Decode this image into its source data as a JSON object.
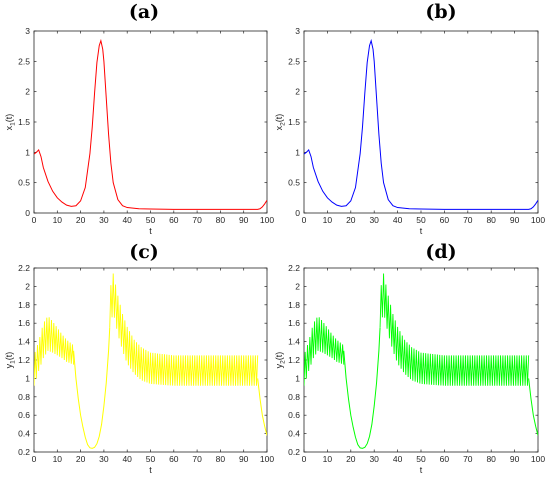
{
  "chart_data": [
    {
      "type": "line",
      "title": "(a)",
      "xlabel": "t",
      "ylabel": "x",
      "ylabel_sub": "1",
      "ylabel_tail": "(t)",
      "xlim": [
        0,
        100
      ],
      "ylim": [
        0,
        3
      ],
      "xticks": [
        0,
        10,
        20,
        30,
        40,
        50,
        60,
        70,
        80,
        90,
        100
      ],
      "yticks": [
        0,
        0.5,
        1,
        1.5,
        2,
        2.5,
        3
      ],
      "color": "#ff0000",
      "series": [
        {
          "x": [
            0,
            1,
            2,
            3,
            4,
            6,
            8,
            10,
            12,
            14,
            16,
            18,
            20,
            22,
            24,
            25,
            26,
            27,
            28,
            28.7,
            29.5,
            30,
            31,
            32,
            33,
            34,
            36,
            38,
            40,
            45,
            50,
            60,
            70,
            80,
            90,
            96,
            97,
            98,
            99,
            100
          ],
          "y": [
            0.97,
            1.0,
            1.04,
            0.93,
            0.75,
            0.52,
            0.36,
            0.25,
            0.18,
            0.13,
            0.11,
            0.12,
            0.2,
            0.42,
            0.98,
            1.42,
            1.98,
            2.48,
            2.76,
            2.84,
            2.7,
            2.5,
            1.9,
            1.3,
            0.82,
            0.5,
            0.22,
            0.12,
            0.09,
            0.07,
            0.065,
            0.06,
            0.06,
            0.06,
            0.06,
            0.06,
            0.07,
            0.1,
            0.15,
            0.21
          ]
        }
      ]
    },
    {
      "type": "line",
      "title": "(b)",
      "xlabel": "t",
      "ylabel": "x",
      "ylabel_sub": "2",
      "ylabel_tail": "(t)",
      "xlim": [
        0,
        100
      ],
      "ylim": [
        0,
        3
      ],
      "xticks": [
        0,
        10,
        20,
        30,
        40,
        50,
        60,
        70,
        80,
        90,
        100
      ],
      "yticks": [
        0,
        0.5,
        1,
        1.5,
        2,
        2.5,
        3
      ],
      "color": "#0000ff",
      "series": [
        {
          "x": [
            0,
            1,
            2,
            3,
            4,
            6,
            8,
            10,
            12,
            14,
            16,
            18,
            20,
            22,
            24,
            25,
            26,
            27,
            28,
            28.7,
            29.5,
            30,
            31,
            32,
            33,
            34,
            36,
            38,
            40,
            45,
            50,
            60,
            70,
            80,
            90,
            96,
            97,
            98,
            99,
            100
          ],
          "y": [
            0.97,
            1.0,
            1.04,
            0.93,
            0.75,
            0.52,
            0.36,
            0.25,
            0.18,
            0.13,
            0.11,
            0.12,
            0.2,
            0.42,
            0.98,
            1.42,
            1.98,
            2.48,
            2.76,
            2.84,
            2.7,
            2.5,
            1.9,
            1.3,
            0.82,
            0.5,
            0.22,
            0.12,
            0.09,
            0.07,
            0.065,
            0.06,
            0.06,
            0.06,
            0.06,
            0.06,
            0.07,
            0.1,
            0.15,
            0.21
          ]
        }
      ]
    },
    {
      "type": "line",
      "title": "(c)",
      "xlabel": "t",
      "ylabel": "y",
      "ylabel_sub": "1",
      "ylabel_tail": "(t)",
      "xlim": [
        0,
        100
      ],
      "ylim": [
        0.2,
        2.2
      ],
      "xticks": [
        0,
        10,
        20,
        30,
        40,
        50,
        60,
        70,
        80,
        90,
        100
      ],
      "yticks": [
        0.2,
        0.4,
        0.6,
        0.8,
        1,
        1.2,
        1.4,
        1.6,
        1.8,
        2,
        2.2
      ],
      "color": "#ffff00",
      "series": [
        {
          "segments": [
            {
              "x_start": 0,
              "x_end": 17,
              "step": 0.5,
              "upper": [
                [
                  0,
                  1.25
                ],
                [
                  2,
                  1.4
                ],
                [
                  4,
                  1.6
                ],
                [
                  6,
                  1.68
                ],
                [
                  8,
                  1.62
                ],
                [
                  10,
                  1.55
                ],
                [
                  12,
                  1.48
                ],
                [
                  14,
                  1.42
                ],
                [
                  16,
                  1.38
                ],
                [
                  17,
                  1.36
                ]
              ],
              "lower": [
                [
                  0,
                  0.92
                ],
                [
                  2,
                  1.08
                ],
                [
                  4,
                  1.22
                ],
                [
                  6,
                  1.3
                ],
                [
                  8,
                  1.28
                ],
                [
                  10,
                  1.25
                ],
                [
                  12,
                  1.22
                ],
                [
                  14,
                  1.18
                ],
                [
                  16,
                  1.16
                ],
                [
                  17,
                  1.15
                ]
              ]
            },
            {
              "x_start": 32.5,
              "x_end": 96,
              "step": 0.5,
              "upper": [
                [
                  32.5,
                  1.95
                ],
                [
                  34,
                  2.14
                ],
                [
                  36,
                  1.9
                ],
                [
                  38,
                  1.7
                ],
                [
                  40,
                  1.56
                ],
                [
                  43,
                  1.42
                ],
                [
                  46,
                  1.34
                ],
                [
                  50,
                  1.28
                ],
                [
                  60,
                  1.25
                ],
                [
                  96,
                  1.25
                ]
              ],
              "lower": [
                [
                  32.5,
                  1.55
                ],
                [
                  34,
                  1.72
                ],
                [
                  36,
                  1.48
                ],
                [
                  38,
                  1.3
                ],
                [
                  40,
                  1.16
                ],
                [
                  43,
                  1.05
                ],
                [
                  46,
                  0.98
                ],
                [
                  50,
                  0.94
                ],
                [
                  60,
                  0.92
                ],
                [
                  96,
                  0.92
                ]
              ]
            }
          ],
          "smooth": [
            [
              [
                17,
                1.3
              ],
              [
                18,
                1.0
              ],
              [
                19,
                0.78
              ],
              [
                20,
                0.6
              ],
              [
                21,
                0.47
              ],
              [
                22,
                0.36
              ],
              [
                23,
                0.28
              ],
              [
                24,
                0.245
              ],
              [
                25,
                0.24
              ],
              [
                26,
                0.25
              ],
              [
                27,
                0.29
              ],
              [
                28,
                0.37
              ],
              [
                29,
                0.5
              ],
              [
                30,
                0.7
              ],
              [
                31,
                0.95
              ],
              [
                32,
                1.3
              ],
              [
                32.5,
                1.55
              ]
            ],
            [
              [
                96,
                1.0
              ],
              [
                97,
                0.78
              ],
              [
                98,
                0.6
              ],
              [
                99,
                0.48
              ],
              [
                100,
                0.38
              ]
            ]
          ]
        }
      ]
    },
    {
      "type": "line",
      "title": "(d)",
      "xlabel": "t",
      "ylabel": "y",
      "ylabel_sub": "2",
      "ylabel_tail": "(t)",
      "xlim": [
        0,
        100
      ],
      "ylim": [
        0.2,
        2.2
      ],
      "xticks": [
        0,
        10,
        20,
        30,
        40,
        50,
        60,
        70,
        80,
        90,
        100
      ],
      "yticks": [
        0.2,
        0.4,
        0.6,
        0.8,
        1,
        1.2,
        1.4,
        1.6,
        1.8,
        2,
        2.2
      ],
      "color": "#00ff00",
      "series": [
        {
          "segments": [
            {
              "x_start": 0,
              "x_end": 17,
              "step": 0.5,
              "upper": [
                [
                  0,
                  1.25
                ],
                [
                  2,
                  1.4
                ],
                [
                  4,
                  1.6
                ],
                [
                  6,
                  1.68
                ],
                [
                  8,
                  1.62
                ],
                [
                  10,
                  1.55
                ],
                [
                  12,
                  1.48
                ],
                [
                  14,
                  1.42
                ],
                [
                  16,
                  1.38
                ],
                [
                  17,
                  1.36
                ]
              ],
              "lower": [
                [
                  0,
                  0.92
                ],
                [
                  2,
                  1.08
                ],
                [
                  4,
                  1.22
                ],
                [
                  6,
                  1.3
                ],
                [
                  8,
                  1.28
                ],
                [
                  10,
                  1.25
                ],
                [
                  12,
                  1.22
                ],
                [
                  14,
                  1.18
                ],
                [
                  16,
                  1.16
                ],
                [
                  17,
                  1.15
                ]
              ]
            },
            {
              "x_start": 32.5,
              "x_end": 96,
              "step": 0.5,
              "upper": [
                [
                  32.5,
                  1.95
                ],
                [
                  34,
                  2.14
                ],
                [
                  36,
                  1.9
                ],
                [
                  38,
                  1.7
                ],
                [
                  40,
                  1.56
                ],
                [
                  43,
                  1.42
                ],
                [
                  46,
                  1.34
                ],
                [
                  50,
                  1.28
                ],
                [
                  60,
                  1.25
                ],
                [
                  96,
                  1.25
                ]
              ],
              "lower": [
                [
                  32.5,
                  1.55
                ],
                [
                  34,
                  1.72
                ],
                [
                  36,
                  1.48
                ],
                [
                  38,
                  1.3
                ],
                [
                  40,
                  1.16
                ],
                [
                  43,
                  1.05
                ],
                [
                  46,
                  0.98
                ],
                [
                  50,
                  0.94
                ],
                [
                  60,
                  0.92
                ],
                [
                  96,
                  0.92
                ]
              ]
            }
          ],
          "smooth": [
            [
              [
                17,
                1.3
              ],
              [
                18,
                1.0
              ],
              [
                19,
                0.78
              ],
              [
                20,
                0.6
              ],
              [
                21,
                0.47
              ],
              [
                22,
                0.36
              ],
              [
                23,
                0.28
              ],
              [
                24,
                0.245
              ],
              [
                25,
                0.24
              ],
              [
                26,
                0.25
              ],
              [
                27,
                0.29
              ],
              [
                28,
                0.37
              ],
              [
                29,
                0.5
              ],
              [
                30,
                0.7
              ],
              [
                31,
                0.95
              ],
              [
                32,
                1.3
              ],
              [
                32.5,
                1.55
              ]
            ],
            [
              [
                96,
                1.0
              ],
              [
                97,
                0.78
              ],
              [
                98,
                0.6
              ],
              [
                99,
                0.48
              ],
              [
                100,
                0.38
              ]
            ]
          ]
        }
      ]
    }
  ]
}
